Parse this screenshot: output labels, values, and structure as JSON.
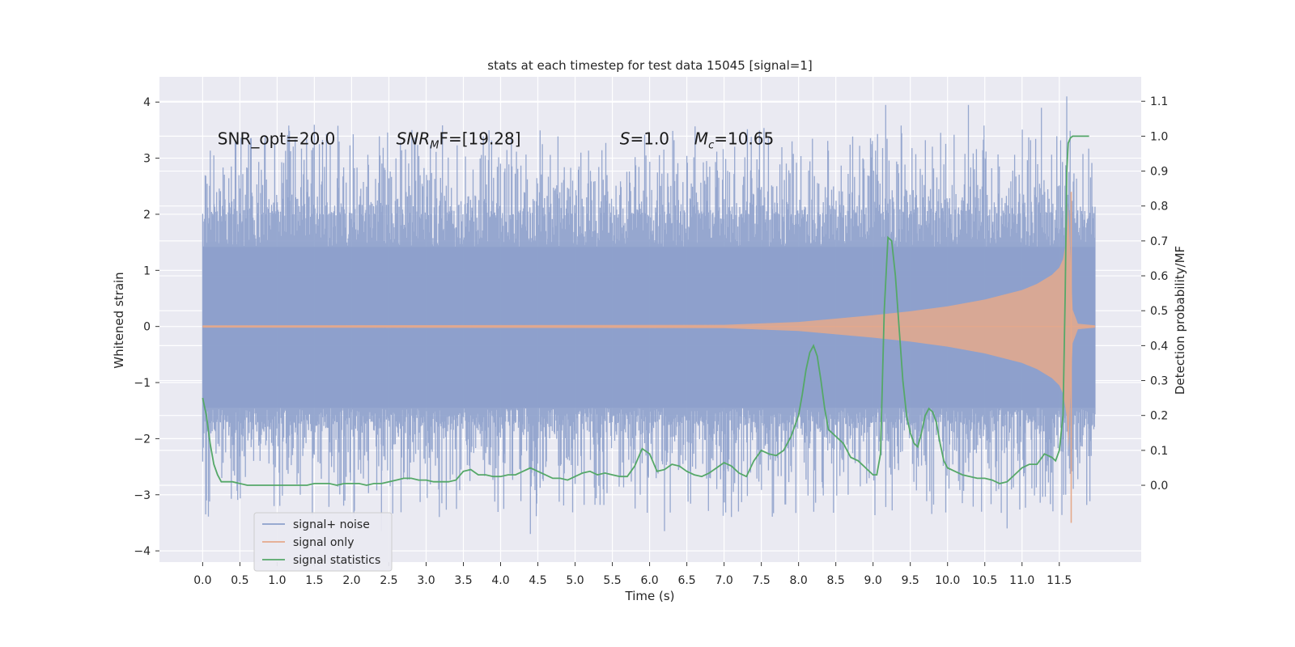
{
  "chart_data": {
    "type": "line",
    "title": "stats at each timestep for test data 15045 [signal=1]",
    "xlabel": "Time (s)",
    "ylabel_left": "Whitened strain",
    "ylabel_right": "Detection probability/MF",
    "xlim": [
      -0.58,
      12.6
    ],
    "ylim_left": [
      -4.2,
      4.45
    ],
    "ylim_right": [
      -0.22,
      1.17
    ],
    "x_ticks": [
      "0.0",
      "0.5",
      "1.0",
      "1.5",
      "2.0",
      "2.5",
      "3.0",
      "3.5",
      "4.0",
      "4.5",
      "5.0",
      "5.5",
      "6.0",
      "6.5",
      "7.0",
      "7.5",
      "8.0",
      "8.5",
      "9.0",
      "9.5",
      "10.0",
      "10.5",
      "11.0",
      "11.5"
    ],
    "y_ticks_left": [
      "−4",
      "−3",
      "−2",
      "−1",
      "0",
      "1",
      "2",
      "3",
      "4"
    ],
    "y_ticks_right": [
      "0.0",
      "0.1",
      "0.2",
      "0.3",
      "0.4",
      "0.5",
      "0.6",
      "0.7",
      "0.8",
      "0.9",
      "1.0",
      "1.1"
    ],
    "grid": true,
    "legend_position": "lower-left",
    "annotations": [
      {
        "text": "SNR_opt=20.0",
        "x": 0.2,
        "y": 3.35
      },
      {
        "base": "SNR",
        "sub": "M",
        "tail": "F=[19.28]",
        "x": 2.6,
        "y": 3.35
      },
      {
        "base": "S",
        "sub": "",
        "tail": "=1.0",
        "x": 5.6,
        "y": 3.35
      },
      {
        "base": "M",
        "sub": "c",
        "tail": "=10.65",
        "x": 6.6,
        "y": 3.35
      }
    ],
    "series": [
      {
        "name": "signal+ noise",
        "color": "#8da0cb",
        "axis": "left",
        "x_range": [
          0.0,
          11.98
        ],
        "envelope_core": [
          -1.45,
          1.42
        ],
        "typical_peak_high": [
          2.0,
          3.6
        ],
        "typical_peak_low": [
          -1.7,
          -3.4
        ],
        "max": 4.1,
        "min": -3.7
      },
      {
        "name": "signal only",
        "color": "#e5a98b",
        "axis": "left",
        "x": [
          0.0,
          7.0,
          8.0,
          9.0,
          9.5,
          10.0,
          10.5,
          11.0,
          11.2,
          11.4,
          11.5,
          11.55,
          11.6,
          11.62,
          11.65,
          11.68,
          11.75,
          11.98
        ],
        "amplitude": [
          0.02,
          0.03,
          0.08,
          0.2,
          0.27,
          0.36,
          0.48,
          0.65,
          0.76,
          0.92,
          1.05,
          1.2,
          1.6,
          2.2,
          1.2,
          0.3,
          0.05,
          0.02
        ],
        "min": -3.5
      },
      {
        "name": "signal statistics",
        "color": "#55a868",
        "axis": "right",
        "x": [
          0.0,
          0.05,
          0.1,
          0.15,
          0.2,
          0.25,
          0.3,
          0.4,
          0.5,
          0.6,
          0.7,
          0.8,
          0.9,
          1.0,
          1.1,
          1.2,
          1.3,
          1.4,
          1.5,
          1.6,
          1.7,
          1.8,
          1.9,
          2.0,
          2.1,
          2.2,
          2.3,
          2.4,
          2.5,
          2.6,
          2.7,
          2.8,
          2.9,
          3.0,
          3.1,
          3.2,
          3.3,
          3.4,
          3.5,
          3.6,
          3.7,
          3.8,
          3.9,
          4.0,
          4.1,
          4.2,
          4.3,
          4.4,
          4.5,
          4.6,
          4.7,
          4.8,
          4.9,
          5.0,
          5.1,
          5.2,
          5.3,
          5.4,
          5.5,
          5.6,
          5.7,
          5.8,
          5.9,
          6.0,
          6.1,
          6.2,
          6.3,
          6.4,
          6.5,
          6.6,
          6.7,
          6.8,
          6.9,
          7.0,
          7.1,
          7.2,
          7.3,
          7.4,
          7.5,
          7.6,
          7.7,
          7.8,
          7.9,
          8.0,
          8.05,
          8.1,
          8.15,
          8.2,
          8.25,
          8.3,
          8.35,
          8.4,
          8.45,
          8.5,
          8.6,
          8.7,
          8.8,
          8.9,
          9.0,
          9.05,
          9.1,
          9.15,
          9.2,
          9.25,
          9.3,
          9.35,
          9.4,
          9.45,
          9.5,
          9.55,
          9.6,
          9.65,
          9.7,
          9.75,
          9.8,
          9.85,
          9.9,
          9.95,
          10.0,
          10.1,
          10.2,
          10.3,
          10.4,
          10.5,
          10.6,
          10.7,
          10.8,
          10.9,
          11.0,
          11.1,
          11.2,
          11.3,
          11.4,
          11.45,
          11.5,
          11.55,
          11.58,
          11.6,
          11.62,
          11.65,
          11.68,
          11.7,
          11.8,
          11.9
        ],
        "values": [
          0.25,
          0.2,
          0.12,
          0.06,
          0.03,
          0.01,
          0.01,
          0.01,
          0.005,
          0.0,
          0.0,
          0.0,
          0.0,
          0.0,
          0.0,
          0.0,
          0.0,
          0.0,
          0.005,
          0.005,
          0.005,
          0.0,
          0.005,
          0.005,
          0.005,
          0.0,
          0.005,
          0.005,
          0.01,
          0.015,
          0.02,
          0.02,
          0.015,
          0.015,
          0.01,
          0.01,
          0.01,
          0.015,
          0.04,
          0.045,
          0.03,
          0.03,
          0.025,
          0.025,
          0.03,
          0.03,
          0.04,
          0.05,
          0.04,
          0.03,
          0.02,
          0.02,
          0.015,
          0.025,
          0.035,
          0.04,
          0.03,
          0.035,
          0.03,
          0.025,
          0.025,
          0.055,
          0.105,
          0.09,
          0.04,
          0.045,
          0.06,
          0.055,
          0.04,
          0.03,
          0.025,
          0.035,
          0.05,
          0.065,
          0.055,
          0.035,
          0.025,
          0.07,
          0.1,
          0.09,
          0.085,
          0.1,
          0.14,
          0.2,
          0.26,
          0.33,
          0.38,
          0.4,
          0.37,
          0.3,
          0.22,
          0.16,
          0.15,
          0.14,
          0.12,
          0.08,
          0.07,
          0.05,
          0.03,
          0.03,
          0.09,
          0.5,
          0.71,
          0.7,
          0.6,
          0.45,
          0.3,
          0.2,
          0.15,
          0.12,
          0.11,
          0.15,
          0.2,
          0.22,
          0.21,
          0.18,
          0.12,
          0.07,
          0.05,
          0.04,
          0.03,
          0.025,
          0.02,
          0.02,
          0.015,
          0.005,
          0.01,
          0.03,
          0.05,
          0.06,
          0.06,
          0.09,
          0.08,
          0.07,
          0.1,
          0.2,
          0.55,
          0.9,
          0.98,
          0.995,
          1.0,
          1.0,
          1.0,
          1.0
        ]
      }
    ]
  }
}
